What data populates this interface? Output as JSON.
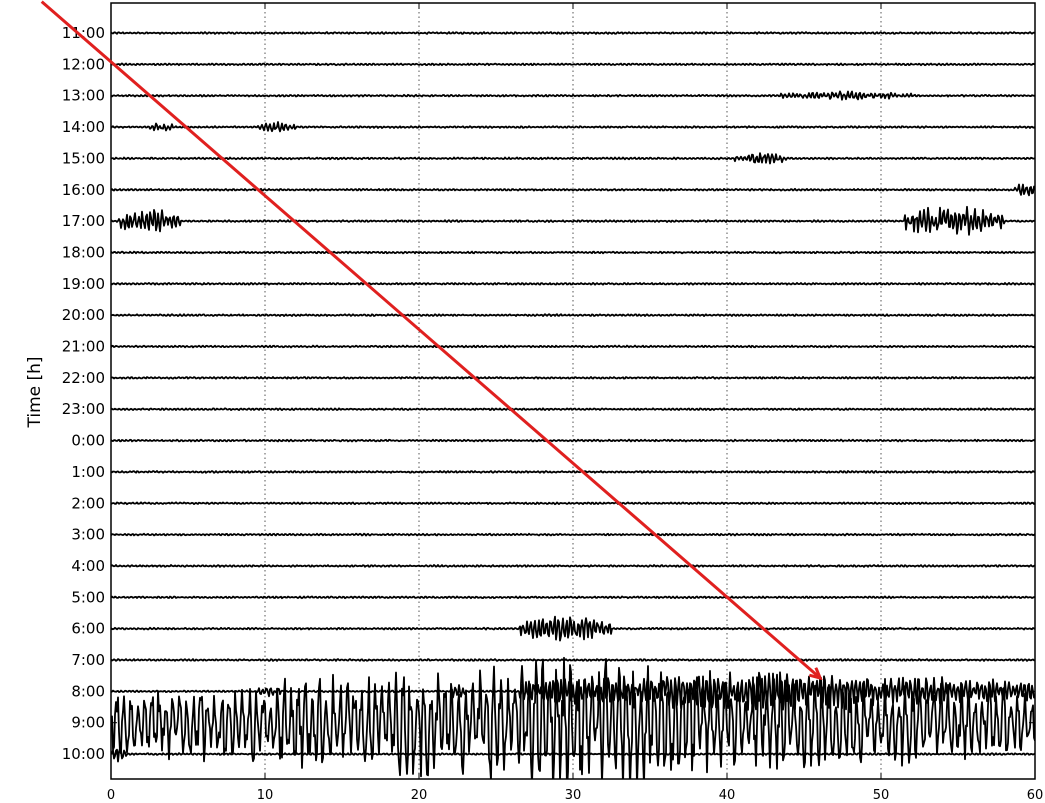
{
  "chart_data": {
    "type": "line",
    "title": "",
    "xlabel": "",
    "ylabel": "Time [h]",
    "xlim": [
      0,
      60
    ],
    "x_ticks": [
      "0",
      "10",
      "20",
      "30",
      "40",
      "50",
      "60"
    ],
    "x_grid": true,
    "row_labels": [
      "11:00",
      "12:00",
      "13:00",
      "14:00",
      "15:00",
      "16:00",
      "17:00",
      "18:00",
      "19:00",
      "20:00",
      "21:00",
      "22:00",
      "23:00",
      "0:00",
      "1:00",
      "2:00",
      "3:00",
      "4:00",
      "5:00",
      "6:00",
      "7:00",
      "8:00",
      "9:00",
      "10:00"
    ],
    "events": [
      {
        "row": "13:00",
        "x_start": 43.5,
        "x_end": 52.0,
        "amplitude": 0.15
      },
      {
        "row": "14:00",
        "x_start": 2.5,
        "x_end": 4.0,
        "amplitude": 0.18
      },
      {
        "row": "14:00",
        "x_start": 9.5,
        "x_end": 12.0,
        "amplitude": 0.18
      },
      {
        "row": "15:00",
        "x_start": 40.5,
        "x_end": 44.0,
        "amplitude": 0.2
      },
      {
        "row": "16:00",
        "x_start": 58.7,
        "x_end": 60.0,
        "amplitude": 0.25
      },
      {
        "row": "17:00",
        "x_start": 0.5,
        "x_end": 4.5,
        "amplitude": 0.45
      },
      {
        "row": "17:00",
        "x_start": 51.5,
        "x_end": 58.0,
        "amplitude": 0.6
      },
      {
        "row": "6:00",
        "x_start": 26.5,
        "x_end": 32.5,
        "amplitude": 0.5
      },
      {
        "row": "8:00",
        "x_start": 9.5,
        "x_end": 11.0,
        "amplitude": 0.2
      },
      {
        "row": "8:00",
        "x_start": 22.0,
        "x_end": 23.0,
        "amplitude": 0.3
      },
      {
        "row": "8:00",
        "x_start": 26.5,
        "x_end": 60.0,
        "amplitude": 0.7
      },
      {
        "row": "9:00",
        "x_start": 0.0,
        "x_end": 60.0,
        "amplitude": 2.2
      },
      {
        "row": "10:00",
        "x_start": 0.0,
        "x_end": 1.0,
        "amplitude": 0.3
      }
    ],
    "annotation": {
      "type": "arrow",
      "color": "#e0201f",
      "from_x": -4.5,
      "from_row": "10:00 (previous)",
      "to_x": 46,
      "to_row": "8:00"
    }
  }
}
